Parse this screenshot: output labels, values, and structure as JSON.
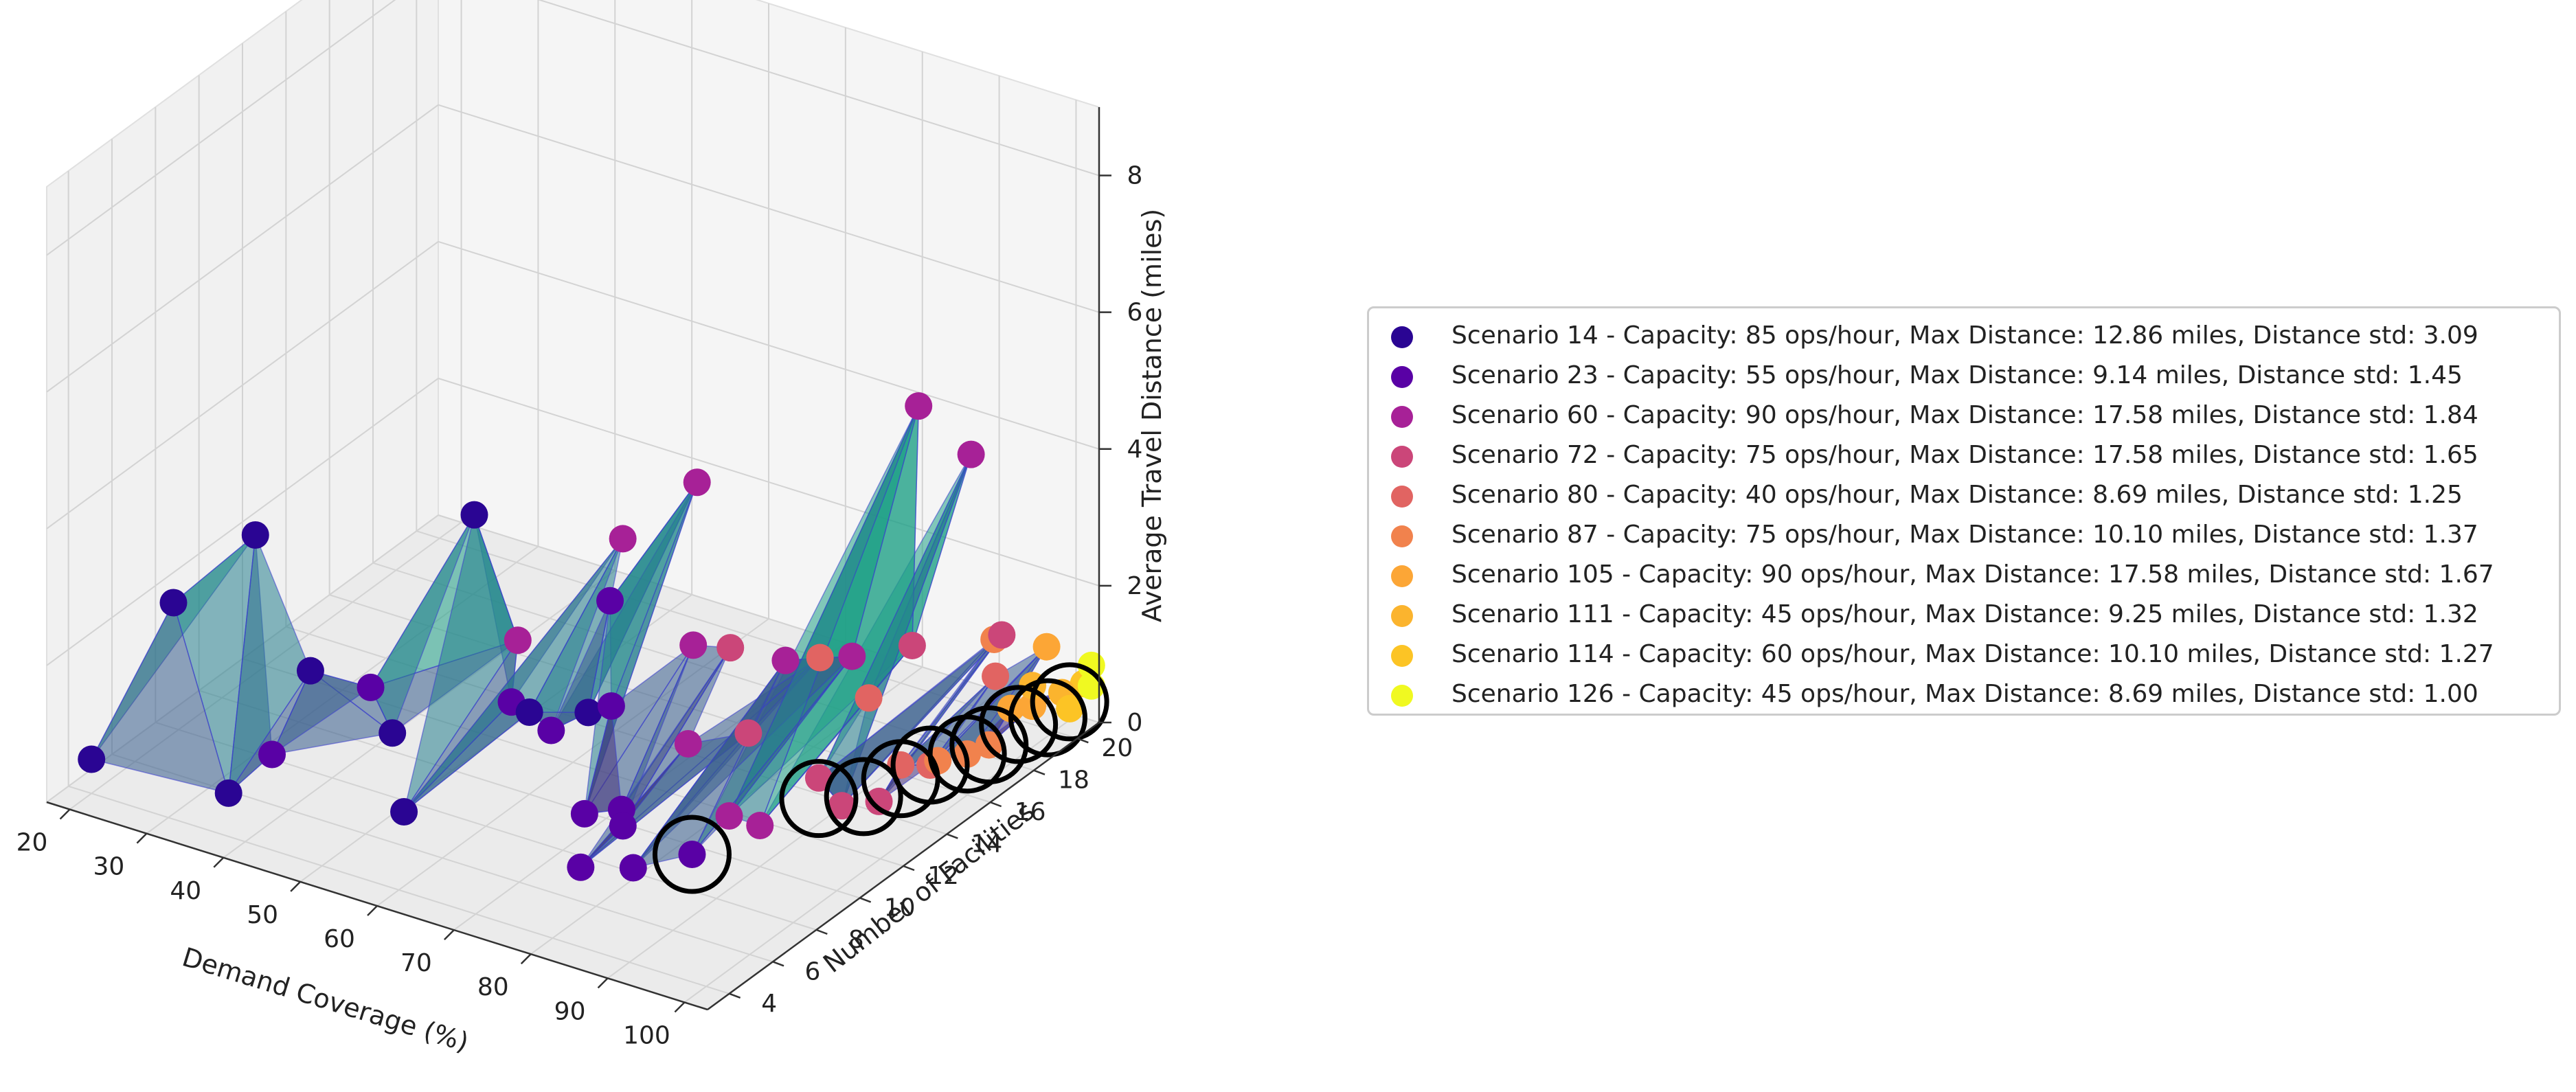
{
  "chart_data": {
    "type": "scatter3d+surface",
    "title": "",
    "xlabel": "Demand Coverage (%)",
    "ylabel": "Number of Facilities",
    "zlabel": "Average Travel Distance (miles)",
    "xlim": [
      17,
      103
    ],
    "ylim": [
      3,
      21
    ],
    "zlim": [
      0,
      9
    ],
    "x_ticks": [
      20,
      30,
      40,
      50,
      60,
      70,
      80,
      90,
      100
    ],
    "y_ticks": [
      4,
      6,
      8,
      10,
      12,
      14,
      16,
      18,
      20
    ],
    "z_ticks": [
      0,
      2,
      4,
      6,
      8
    ],
    "grid": true,
    "colormap": "plasma",
    "legend_position": "right",
    "series": [
      {
        "name": "Scenario 14",
        "label": "Scenario 14 - Capacity: 85 ops/hour, Max Distance: 12.86 miles, Distance std: 3.09",
        "color": "#2a0593",
        "points": [
          [
            20,
            4,
            0.5
          ],
          [
            25,
            6,
            2.5
          ],
          [
            30,
            8,
            3.2
          ],
          [
            35,
            5,
            0.3
          ],
          [
            40,
            7,
            1.8
          ],
          [
            45,
            9,
            0.6
          ],
          [
            50,
            11,
            3.5
          ],
          [
            55,
            6,
            0.5
          ],
          [
            60,
            10,
            1.2
          ],
          [
            62,
            12,
            0.8
          ]
        ]
      },
      {
        "name": "Scenario 23",
        "label": "Scenario 23 - Capacity: 55 ops/hour, Max Distance: 9.14 miles, Distance std: 1.45",
        "color": "#5901a5",
        "points": [
          [
            35,
            7,
            0.4
          ],
          [
            45,
            8,
            1.5
          ],
          [
            52,
            12,
            0.6
          ],
          [
            60,
            11,
            0.7
          ],
          [
            62,
            13,
            2.2
          ],
          [
            65,
            12,
            1.0
          ],
          [
            70,
            9,
            0.3
          ],
          [
            72,
            10,
            0.2
          ],
          [
            75,
            9,
            0.3
          ],
          [
            78,
            6,
            0.5
          ],
          [
            82,
            7,
            0.4
          ],
          [
            84,
            9,
            0.2
          ]
        ]
      },
      {
        "name": "Scenario 60",
        "label": "Scenario 60 - Capacity: 90 ops/hour, Max Distance: 17.58 miles, Distance std: 1.84",
        "color": "#a72197",
        "points": [
          [
            50,
            13,
            1.2
          ],
          [
            58,
            15,
            2.5
          ],
          [
            62,
            17,
            3.0
          ],
          [
            70,
            14,
            1.6
          ],
          [
            75,
            12,
            0.8
          ],
          [
            82,
            14,
            1.8
          ],
          [
            85,
            16,
            1.5
          ],
          [
            88,
            18,
            4.8
          ],
          [
            92,
            19,
            4.0
          ],
          [
            86,
            10,
            0.6
          ],
          [
            90,
            10,
            0.6
          ]
        ]
      },
      {
        "name": "Scenario 72",
        "label": "Scenario 72 - Capacity: 75 ops/hour, Max Distance: 17.58 miles, Distance std: 1.65",
        "color": "#cb4679",
        "points": [
          [
            72,
            15,
            1.4
          ],
          [
            80,
            13,
            0.9
          ],
          [
            90,
            17,
            1.6
          ],
          [
            96,
            19,
            1.5
          ],
          [
            92,
            12,
            0.9
          ],
          [
            95,
            12,
            0.6
          ],
          [
            97,
            13,
            0.5
          ]
        ]
      },
      {
        "name": "Scenario 80",
        "label": "Scenario 80 - Capacity: 40 ops/hour, Max Distance: 8.69 miles, Distance std: 1.25",
        "color": "#e16462",
        "points": [
          [
            78,
            17,
            1.0
          ],
          [
            90,
            15,
            1.3
          ],
          [
            98,
            18,
            1.2
          ],
          [
            97,
            14,
            0.8
          ],
          [
            98,
            15,
            0.6
          ]
        ]
      },
      {
        "name": "Scenario 87",
        "label": "Scenario 87 - Capacity: 75 ops/hour, Max Distance: 10.10 miles, Distance std: 1.37",
        "color": "#f1824d",
        "points": [
          [
            95,
            19,
            1.4
          ],
          [
            99,
            15,
            0.7
          ],
          [
            100,
            16,
            0.6
          ],
          [
            100,
            17,
            0.5
          ]
        ]
      },
      {
        "name": "Scenario 105",
        "label": "Scenario 105 - Capacity: 90 ops/hour, Max Distance: 17.58 miles, Distance std: 1.67",
        "color": "#fca636",
        "points": [
          [
            99,
            20,
            1.2
          ],
          [
            100,
            18,
            0.8
          ],
          [
            100,
            19,
            0.6
          ]
        ]
      },
      {
        "name": "Scenario 111",
        "label": "Scenario 111 - Capacity: 45 ops/hour, Max Distance: 9.25 miles, Distance std: 1.32",
        "color": "#fbb42e",
        "points": [
          [
            100,
            19,
            0.9
          ],
          [
            101,
            20,
            0.6
          ]
        ]
      },
      {
        "name": "Scenario 114",
        "label": "Scenario 114 - Capacity: 60 ops/hour, Max Distance: 10.10 miles, Distance std: 1.27",
        "color": "#fcc425",
        "points": [
          [
            101,
            21,
            0.5
          ],
          [
            102,
            20,
            0.4
          ]
        ]
      },
      {
        "name": "Scenario 126",
        "label": "Scenario 126 - Capacity: 45 ops/hour, Max Distance: 8.69 miles, Distance std: 1.00",
        "color": "#f0f921",
        "points": [
          [
            102,
            21,
            0.8
          ],
          [
            102,
            21,
            0.5
          ]
        ]
      }
    ],
    "highlighted_points": [
      [
        84,
        9,
        0.2
      ],
      [
        92,
        12,
        0.6
      ],
      [
        95,
        13,
        0.5
      ],
      [
        97,
        14,
        0.6
      ],
      [
        98,
        15,
        0.6
      ],
      [
        100,
        16,
        0.6
      ],
      [
        100,
        17,
        0.5
      ],
      [
        101,
        18,
        0.6
      ],
      [
        102,
        19,
        0.5
      ],
      [
        102,
        20,
        0.5
      ]
    ]
  }
}
